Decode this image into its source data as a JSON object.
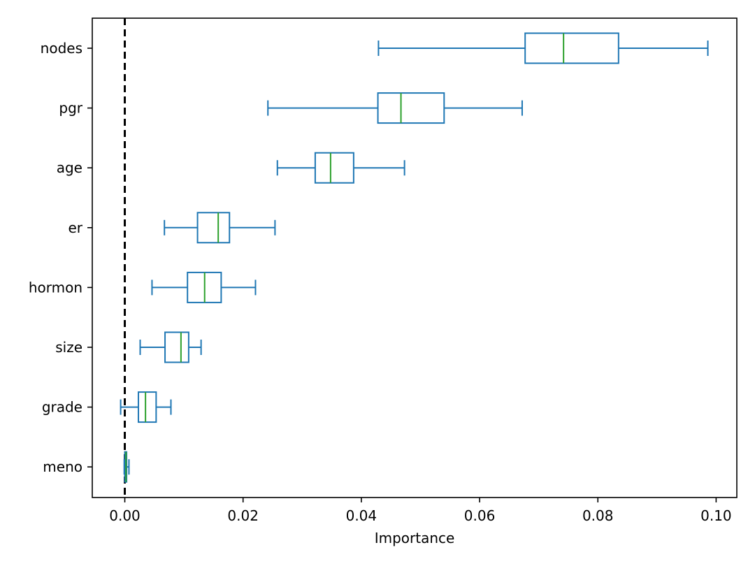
{
  "chart_data": {
    "type": "boxplot",
    "orientation": "horizontal",
    "title": "",
    "xlabel": "Importance",
    "ylabel": "",
    "xlim": [
      -0.0055,
      0.1035
    ],
    "xticks": [
      0.0,
      0.02,
      0.04,
      0.06,
      0.08,
      0.1
    ],
    "xtick_labels": [
      "0.00",
      "0.02",
      "0.04",
      "0.06",
      "0.08",
      "0.10"
    ],
    "grid": false,
    "reference_line": {
      "x": 0.0,
      "style": "dashed",
      "color": "#000000"
    },
    "box_color": "#1f77b4",
    "median_color": "#2ca02c",
    "categories": [
      "nodes",
      "pgr",
      "age",
      "er",
      "hormon",
      "size",
      "grade",
      "meno"
    ],
    "boxes": [
      {
        "label": "nodes",
        "whisker_low": 0.0429,
        "q1": 0.0677,
        "median": 0.0742,
        "q3": 0.0835,
        "whisker_high": 0.0986
      },
      {
        "label": "pgr",
        "whisker_low": 0.0242,
        "q1": 0.0428,
        "median": 0.0467,
        "q3": 0.054,
        "whisker_high": 0.0672
      },
      {
        "label": "age",
        "whisker_low": 0.0258,
        "q1": 0.0322,
        "median": 0.0348,
        "q3": 0.0387,
        "whisker_high": 0.0473
      },
      {
        "label": "er",
        "whisker_low": 0.0067,
        "q1": 0.0123,
        "median": 0.0158,
        "q3": 0.0177,
        "whisker_high": 0.0254
      },
      {
        "label": "hormon",
        "whisker_low": 0.0046,
        "q1": 0.0106,
        "median": 0.0135,
        "q3": 0.0163,
        "whisker_high": 0.0221
      },
      {
        "label": "size",
        "whisker_low": 0.0026,
        "q1": 0.0068,
        "median": 0.0095,
        "q3": 0.0108,
        "whisker_high": 0.0129
      },
      {
        "label": "grade",
        "whisker_low": -0.0007,
        "q1": 0.0023,
        "median": 0.0035,
        "q3": 0.0053,
        "whisker_high": 0.0078
      },
      {
        "label": "meno",
        "whisker_low": -0.0001,
        "q1": 0.0,
        "median": 0.0002,
        "q3": 0.0003,
        "whisker_high": 0.0007
      }
    ]
  }
}
